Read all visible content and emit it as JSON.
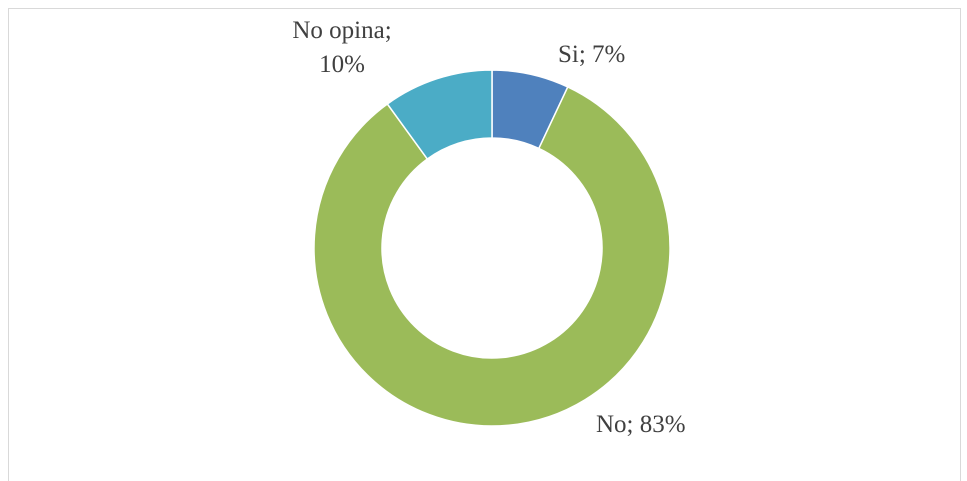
{
  "chart_data": {
    "type": "donut",
    "categories": [
      "Si",
      "No",
      "No opina"
    ],
    "values": [
      7,
      83,
      10
    ],
    "value_labels": [
      "Si; 7%",
      "No; 83%",
      "No opina; 10%"
    ],
    "colors": [
      "#4f81bd",
      "#9bbb59",
      "#4bacc6"
    ]
  }
}
